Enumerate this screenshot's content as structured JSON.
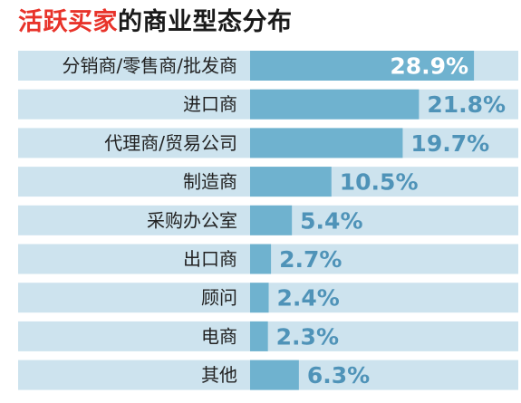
{
  "title": {
    "highlight": "活跃买家",
    "rest": "的商业型态分布"
  },
  "colors": {
    "title_highlight": "#e8332a",
    "title_text": "#1a1a1a",
    "track": "#cde3ee",
    "bar": "#6fb2cf",
    "value_on_bar": "#ffffff",
    "value_outside": "#4f93b8"
  },
  "chart_data": {
    "type": "bar",
    "orientation": "horizontal",
    "categories": [
      "分销商/零售商/批发商",
      "进口商",
      "代理商/贸易公司",
      "制造商",
      "采购办公室",
      "出口商",
      "顾问",
      "电商",
      "其他"
    ],
    "values": [
      28.9,
      21.8,
      19.7,
      10.5,
      5.4,
      2.7,
      2.4,
      2.3,
      6.3
    ],
    "value_labels": [
      "28.9%",
      "21.8%",
      "19.7%",
      "10.5%",
      "5.4%",
      "2.7%",
      "2.4%",
      "2.3%",
      "6.3%"
    ],
    "unit": "%",
    "xlim": [
      0,
      30
    ]
  }
}
